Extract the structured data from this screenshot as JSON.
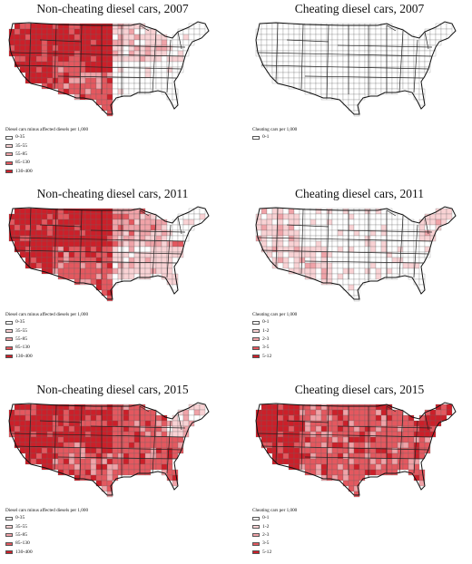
{
  "scale_nc": [
    {
      "label": "0-35",
      "color": "#ffffff"
    },
    {
      "label": "35-55",
      "color": "#f9d2d4"
    },
    {
      "label": "55-85",
      "color": "#f0a3a8"
    },
    {
      "label": "85-130",
      "color": "#e4585f"
    },
    {
      "label": "130-400",
      "color": "#cc1f29"
    }
  ],
  "scale_ch": [
    {
      "label": "0-1",
      "color": "#ffffff"
    },
    {
      "label": "1-2",
      "color": "#f9d2d4"
    },
    {
      "label": "2-3",
      "color": "#f0a3a8"
    },
    {
      "label": "3-5",
      "color": "#e4585f"
    },
    {
      "label": "5-12",
      "color": "#cc1f29"
    }
  ],
  "panels": [
    {
      "title": "Non-cheating diesel cars, 2007",
      "legend_title": "Diesel cars minus affected diesels per 1,000",
      "kind": "nc",
      "n_classes": 5,
      "colors": {
        "west": 4,
        "southwest": 3,
        "plains": 4,
        "texas": 3,
        "midwest": 1,
        "south": 0,
        "northeast": 0,
        "florida": 0
      }
    },
    {
      "title": "Cheating diesel cars, 2007",
      "legend_title": "Cheating cars per 1,000",
      "kind": "ch",
      "n_classes": 1,
      "colors": {
        "west": 0,
        "southwest": 0,
        "plains": 0,
        "texas": 0,
        "midwest": 0,
        "south": 0,
        "northeast": 0,
        "florida": 0
      }
    },
    {
      "title": "Non-cheating diesel cars, 2011",
      "legend_title": "Diesel cars minus affected diesels per 1,000",
      "kind": "nc",
      "n_classes": 5,
      "colors": {
        "west": 4,
        "southwest": 3,
        "plains": 4,
        "texas": 3,
        "midwest": 2,
        "south": 1,
        "northeast": 0,
        "florida": 1
      }
    },
    {
      "title": "Cheating diesel cars, 2011",
      "legend_title": "Cheating cars per 1,000",
      "kind": "ch",
      "n_classes": 5,
      "colors": {
        "west": 1,
        "southwest": 1,
        "plains": 0,
        "texas": 0,
        "midwest": 0,
        "south": 0,
        "northeast": 1,
        "florida": 0
      }
    },
    {
      "title": "Non-cheating diesel cars, 2015",
      "legend_title": "Diesel cars minus affected diesels per 1,000",
      "kind": "nc",
      "n_classes": 5,
      "colors": {
        "west": 4,
        "southwest": 3,
        "plains": 4,
        "texas": 3,
        "midwest": 3,
        "south": 3,
        "northeast": 1,
        "florida": 3
      }
    },
    {
      "title": "Cheating diesel cars, 2015",
      "legend_title": "Cheating cars per 1,000",
      "kind": "ch",
      "n_classes": 5,
      "colors": {
        "west": 4,
        "southwest": 3,
        "plains": 3,
        "texas": 3,
        "midwest": 3,
        "south": 3,
        "northeast": 4,
        "florida": 3
      }
    }
  ]
}
